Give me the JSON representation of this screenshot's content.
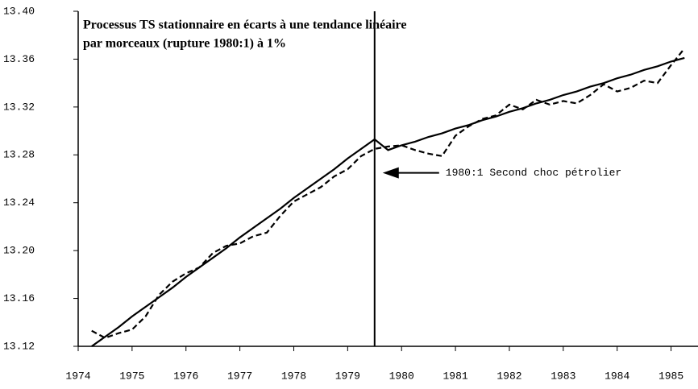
{
  "chart_data": {
    "type": "line",
    "title": [
      "Processus TS stationnaire en écarts à une tendance linéaire",
      "par morceaux (rupture 1980:1) à 1%"
    ],
    "x": [
      1974.75,
      1975.0,
      1975.25,
      1975.5,
      1975.75,
      1976.0,
      1976.25,
      1976.5,
      1976.75,
      1977.0,
      1977.25,
      1977.5,
      1977.75,
      1978.0,
      1978.25,
      1978.5,
      1978.75,
      1979.0,
      1979.25,
      1979.5,
      1979.75,
      1980.0,
      1980.25,
      1980.5,
      1980.75,
      1981.0,
      1981.25,
      1981.5,
      1981.75,
      1982.0,
      1982.25,
      1982.5,
      1982.75,
      1983.0,
      1983.25,
      1983.5,
      1983.75,
      1984.0,
      1984.25,
      1984.5,
      1984.75,
      1985.0,
      1985.25,
      1985.5,
      1985.75
    ],
    "series": [
      {
        "color": "#000000",
        "dash": false,
        "values": [
          13.12,
          13.128,
          13.136,
          13.145,
          13.153,
          13.161,
          13.169,
          13.178,
          13.186,
          13.194,
          13.202,
          13.211,
          13.219,
          13.227,
          13.235,
          13.244,
          13.252,
          13.26,
          13.268,
          13.277,
          13.285,
          13.293,
          13.284,
          13.288,
          13.291,
          13.295,
          13.298,
          13.302,
          13.305,
          13.309,
          13.312,
          13.316,
          13.319,
          13.323,
          13.326,
          13.33,
          13.333,
          13.337,
          13.34,
          13.344,
          13.347,
          13.351,
          13.354,
          13.358,
          13.361
        ]
      },
      {
        "color": "#000000",
        "dash": true,
        "values": [
          13.133,
          13.127,
          13.131,
          13.134,
          13.145,
          13.163,
          13.174,
          13.181,
          13.186,
          13.198,
          13.204,
          13.206,
          13.212,
          13.215,
          13.229,
          13.241,
          13.247,
          13.253,
          13.262,
          13.268,
          13.279,
          13.285,
          13.287,
          13.288,
          13.284,
          13.281,
          13.279,
          13.296,
          13.304,
          13.31,
          13.313,
          13.322,
          13.318,
          13.326,
          13.322,
          13.325,
          13.323,
          13.33,
          13.339,
          13.333,
          13.336,
          13.342,
          13.34,
          13.355,
          13.369
        ]
      }
    ],
    "annotation": {
      "text": "1980:1 Second choc pétrolier",
      "x": 1980.0,
      "y": 13.265
    },
    "xlim": [
      1974.5,
      1986.0
    ],
    "xticks": [
      {
        "value": 1974.5,
        "label": "1974"
      },
      {
        "value": 1975.5,
        "label": "1975"
      },
      {
        "value": 1976.5,
        "label": "1976"
      },
      {
        "value": 1977.5,
        "label": "1977"
      },
      {
        "value": 1978.5,
        "label": "1978"
      },
      {
        "value": 1979.5,
        "label": "1979"
      },
      {
        "value": 1980.5,
        "label": "1980"
      },
      {
        "value": 1981.5,
        "label": "1981"
      },
      {
        "value": 1982.5,
        "label": "1982"
      },
      {
        "value": 1983.5,
        "label": "1983"
      },
      {
        "value": 1984.5,
        "label": "1984"
      },
      {
        "value": 1985.5,
        "label": "1985"
      }
    ],
    "ylim": [
      13.12,
      13.4
    ],
    "yticks": [
      13.12,
      13.16,
      {
        "value": 13.2,
        "label": "13.20"
      },
      13.24,
      13.28,
      13.32,
      13.36,
      {
        "value": 13.4,
        "label": "13.40"
      }
    ]
  }
}
